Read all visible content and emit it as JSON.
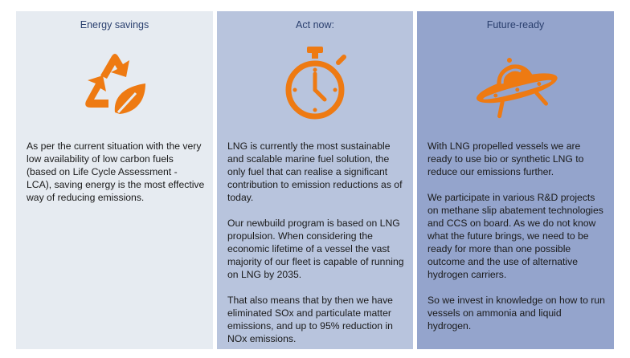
{
  "colors": {
    "accent": "#ee7a12",
    "panel1": "#e6ebf1",
    "panel2": "#b8c4dd",
    "panel3": "#94a4cc"
  },
  "panels": [
    {
      "title": "Energy savings",
      "icon": "recycle-leaf-icon",
      "paragraphs": [
        "As per the current situation with the very low availability of low carbon fuels (based on Life Cycle Assessment - LCA), saving energy is the most effective way of reducing emissions."
      ]
    },
    {
      "title": "Act now:",
      "icon": "stopwatch-icon",
      "paragraphs": [
        "LNG is currently the most sustainable and scalable marine fuel solution, the only fuel that can realise a significant contribution to emission reductions as of today.",
        "Our newbuild program is based on LNG propulsion. When considering the economic lifetime of a vessel the vast majority of our fleet is capable of running on LNG by 2035.",
        "That also means that by then we have eliminated SOx and particulate matter emissions, and up to 95% reduction in NOx emissions."
      ]
    },
    {
      "title": "Future-ready",
      "icon": "ufo-icon",
      "paragraphs": [
        "With LNG propelled vessels we are ready to use bio or synthetic LNG to reduce our emissions further.",
        "We participate in various R&D projects on methane slip abatement technologies and CCS on board. As we do not know what the future brings, we need to be ready for more than one possible outcome and the use of alternative hydrogen carriers.",
        "So we invest in knowledge on how to run vessels on ammonia and liquid hydrogen."
      ]
    }
  ]
}
